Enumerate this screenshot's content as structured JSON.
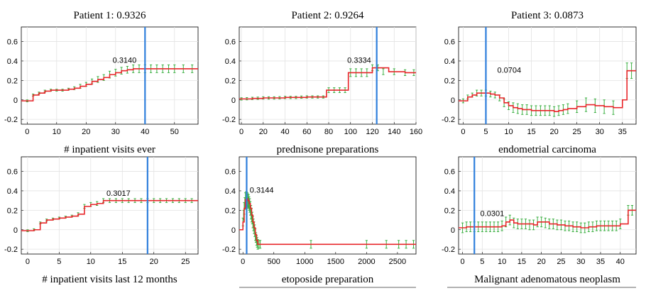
{
  "chart_data": [
    {
      "type": "line",
      "title": "Patient 1: 0.9326",
      "xlabel": "# inpatient visits ever",
      "xlim": [
        -2,
        58
      ],
      "ylim": [
        -0.25,
        0.75
      ],
      "xticks": [
        0,
        10,
        20,
        30,
        40,
        50
      ],
      "yticks": [
        -0.2,
        0,
        0.2,
        0.4,
        0.6
      ],
      "ytick_labels": [
        "-0.2",
        "0",
        "0.2",
        "0.4",
        "0.6"
      ],
      "grid": true,
      "marker": {
        "x": 40,
        "label": "0.3140",
        "label_x": 29,
        "label_y": 0.38
      },
      "colors": {
        "line": "#e8262a",
        "errorbar": "#3cb043",
        "marker": "#2f7fdc"
      },
      "step": {
        "x": [
          -2,
          0,
          2,
          4,
          6,
          8,
          10,
          12,
          14,
          16,
          18,
          20,
          22,
          24,
          26,
          28,
          30,
          32,
          34,
          36,
          38,
          40,
          42,
          44,
          46,
          48,
          50,
          52,
          54,
          56,
          58
        ],
        "y": [
          -0.01,
          -0.01,
          0.05,
          0.07,
          0.09,
          0.1,
          0.1,
          0.1,
          0.11,
          0.12,
          0.14,
          0.16,
          0.19,
          0.21,
          0.23,
          0.26,
          0.28,
          0.3,
          0.31,
          0.32,
          0.32,
          0.32,
          0.32,
          0.32,
          0.32,
          0.32,
          0.32,
          0.32,
          0.32,
          0.32,
          0.32
        ]
      },
      "errorbars": {
        "x": [
          0,
          2,
          4,
          6,
          8,
          10,
          12,
          14,
          16,
          18,
          20,
          22,
          24,
          26,
          28,
          30,
          32,
          34,
          36,
          38,
          40,
          42,
          44,
          46,
          48,
          50,
          53,
          56
        ],
        "y": [
          -0.01,
          0.05,
          0.07,
          0.09,
          0.1,
          0.1,
          0.1,
          0.11,
          0.12,
          0.14,
          0.16,
          0.19,
          0.21,
          0.23,
          0.26,
          0.28,
          0.3,
          0.31,
          0.32,
          0.32,
          0.32,
          0.32,
          0.32,
          0.32,
          0.32,
          0.32,
          0.32,
          0.32
        ],
        "err": [
          0.01,
          0.01,
          0.01,
          0.01,
          0.01,
          0.01,
          0.01,
          0.01,
          0.015,
          0.02,
          0.02,
          0.025,
          0.03,
          0.03,
          0.035,
          0.035,
          0.035,
          0.035,
          0.04,
          0.04,
          0.04,
          0.04,
          0.04,
          0.04,
          0.04,
          0.04,
          0.04,
          0.04
        ]
      }
    },
    {
      "type": "line",
      "title": "Patient 2: 0.9264",
      "xlabel": "prednisone preparations",
      "xlim": [
        -2,
        160
      ],
      "ylim": [
        -0.25,
        0.75
      ],
      "xticks": [
        0,
        20,
        40,
        60,
        80,
        100,
        120,
        140,
        160
      ],
      "yticks": [
        -0.2,
        0,
        0.2,
        0.4,
        0.6
      ],
      "ytick_labels": [
        "-0.2",
        "0",
        "0.2",
        "0.4",
        "0.6"
      ],
      "grid": true,
      "marker": {
        "x": 124,
        "label": "0.3334",
        "label_x": 97,
        "label_y": 0.38
      },
      "colors": {
        "line": "#e8262a",
        "errorbar": "#3cb043",
        "marker": "#2f7fdc"
      },
      "step": {
        "x": [
          -2,
          10,
          20,
          30,
          40,
          50,
          60,
          70,
          78,
          90,
          98,
          110,
          120,
          135,
          150,
          160
        ],
        "y": [
          0.01,
          0.015,
          0.02,
          0.02,
          0.025,
          0.025,
          0.03,
          0.03,
          0.1,
          0.1,
          0.28,
          0.28,
          0.33,
          0.29,
          0.28,
          0.28
        ]
      },
      "errorbars": {
        "x": [
          0,
          5,
          10,
          15,
          20,
          25,
          30,
          35,
          40,
          45,
          50,
          55,
          60,
          65,
          70,
          75,
          80,
          85,
          90,
          95,
          100,
          105,
          110,
          115,
          120,
          125,
          130,
          140,
          150,
          158
        ],
        "y": [
          0.01,
          0.012,
          0.015,
          0.017,
          0.02,
          0.02,
          0.02,
          0.022,
          0.025,
          0.025,
          0.025,
          0.028,
          0.03,
          0.03,
          0.03,
          0.03,
          0.1,
          0.1,
          0.1,
          0.1,
          0.28,
          0.28,
          0.28,
          0.28,
          0.33,
          0.33,
          0.29,
          0.29,
          0.28,
          0.28
        ],
        "err": [
          0.012,
          0.012,
          0.012,
          0.012,
          0.012,
          0.012,
          0.012,
          0.012,
          0.012,
          0.012,
          0.012,
          0.012,
          0.012,
          0.012,
          0.012,
          0.012,
          0.025,
          0.025,
          0.025,
          0.025,
          0.04,
          0.04,
          0.04,
          0.04,
          0.03,
          0.03,
          0.03,
          0.03,
          0.03,
          0.03
        ]
      }
    },
    {
      "type": "line",
      "title": "Patient 3: 0.0873",
      "xlabel": "endometrial carcinoma",
      "xlim": [
        -1,
        38
      ],
      "ylim": [
        -0.25,
        0.75
      ],
      "xticks": [
        0,
        5,
        10,
        15,
        20,
        25,
        30,
        35
      ],
      "yticks": [
        -0.2,
        0,
        0.2,
        0.4,
        0.6
      ],
      "ytick_labels": [
        "-0.2",
        "0",
        "0.2",
        "0.4",
        "0.6"
      ],
      "grid": true,
      "marker": {
        "x": 5,
        "label": "0.0704",
        "label_x": 7.5,
        "label_y": 0.28
      },
      "colors": {
        "line": "#e8262a",
        "errorbar": "#3cb043",
        "marker": "#2f7fdc"
      },
      "step": {
        "x": [
          -1,
          1,
          2,
          3,
          5,
          6,
          7,
          8,
          9,
          10,
          11,
          12,
          13,
          14,
          15,
          16,
          17,
          18,
          19,
          20,
          21,
          22,
          23,
          25,
          27,
          29,
          31,
          33,
          35,
          36,
          38
        ],
        "y": [
          -0.01,
          0.03,
          0.05,
          0.07,
          0.07,
          0.06,
          0.05,
          0.02,
          -0.03,
          -0.06,
          -0.08,
          -0.09,
          -0.1,
          -0.1,
          -0.11,
          -0.11,
          -0.11,
          -0.11,
          -0.11,
          -0.12,
          -0.11,
          -0.1,
          -0.09,
          -0.07,
          -0.05,
          -0.06,
          -0.07,
          -0.08,
          0.0,
          0.3,
          0.3
        ]
      },
      "errorbars": {
        "x": [
          0,
          1,
          2,
          3,
          4,
          5,
          6,
          7,
          8,
          9,
          10,
          11,
          12,
          13,
          14,
          15,
          16,
          17,
          18,
          19,
          20,
          21,
          22,
          23,
          25,
          27,
          29,
          31,
          33,
          36,
          37
        ],
        "y": [
          -0.01,
          0.03,
          0.05,
          0.07,
          0.07,
          0.07,
          0.06,
          0.05,
          0.02,
          -0.03,
          -0.06,
          -0.08,
          -0.09,
          -0.1,
          -0.1,
          -0.11,
          -0.11,
          -0.11,
          -0.11,
          -0.11,
          -0.12,
          -0.11,
          -0.1,
          -0.09,
          -0.07,
          -0.05,
          -0.06,
          -0.07,
          -0.08,
          0.3,
          0.3
        ],
        "err": [
          0.02,
          0.02,
          0.02,
          0.03,
          0.03,
          0.03,
          0.03,
          0.03,
          0.03,
          0.04,
          0.04,
          0.05,
          0.05,
          0.05,
          0.05,
          0.05,
          0.05,
          0.05,
          0.05,
          0.05,
          0.05,
          0.05,
          0.05,
          0.05,
          0.06,
          0.07,
          0.07,
          0.07,
          0.07,
          0.08,
          0.08
        ]
      }
    },
    {
      "type": "line",
      "title": "",
      "xlabel": "# inpatient visits last 12 months",
      "xlim": [
        -1,
        27
      ],
      "ylim": [
        -0.25,
        0.75
      ],
      "xticks": [
        0,
        5,
        10,
        15,
        20,
        25
      ],
      "yticks": [
        -0.2,
        0,
        0.2,
        0.4,
        0.6
      ],
      "ytick_labels": [
        "-0.2",
        "0",
        "0.2",
        "0.4",
        "0.6"
      ],
      "grid": true,
      "marker": {
        "x": 19,
        "label": "0.3017",
        "label_x": 12.5,
        "label_y": 0.35
      },
      "colors": {
        "line": "#e8262a",
        "errorbar": "#3cb043",
        "marker": "#2f7fdc"
      },
      "step": {
        "x": [
          -1,
          1,
          2,
          3,
          4,
          5,
          6,
          7,
          8,
          9,
          10,
          11,
          12,
          13,
          27
        ],
        "y": [
          -0.01,
          0.0,
          0.07,
          0.1,
          0.11,
          0.12,
          0.13,
          0.14,
          0.16,
          0.24,
          0.26,
          0.27,
          0.3,
          0.3,
          0.3
        ]
      },
      "errorbars": {
        "x": [
          0,
          1,
          2,
          3,
          4,
          5,
          6,
          7,
          8,
          9,
          10,
          11,
          12,
          13,
          14,
          15,
          16,
          17,
          18,
          19,
          20,
          21,
          22,
          23,
          24,
          25,
          26
        ],
        "y": [
          -0.01,
          0.0,
          0.07,
          0.1,
          0.11,
          0.12,
          0.13,
          0.14,
          0.16,
          0.24,
          0.26,
          0.27,
          0.3,
          0.3,
          0.3,
          0.3,
          0.3,
          0.3,
          0.3,
          0.3,
          0.3,
          0.3,
          0.3,
          0.3,
          0.3,
          0.3,
          0.3
        ],
        "err": [
          0.01,
          0.01,
          0.01,
          0.01,
          0.01,
          0.01,
          0.01,
          0.01,
          0.015,
          0.02,
          0.02,
          0.02,
          0.02,
          0.02,
          0.02,
          0.02,
          0.02,
          0.02,
          0.02,
          0.02,
          0.02,
          0.02,
          0.02,
          0.02,
          0.02,
          0.02,
          0.02
        ]
      }
    },
    {
      "type": "line",
      "title": "",
      "xlabel": "etoposide preparation",
      "xlim": [
        -60,
        2800
      ],
      "ylim": [
        -0.25,
        0.75
      ],
      "xticks": [
        0,
        500,
        1000,
        1500,
        2000,
        2500
      ],
      "yticks": [
        -0.2,
        0,
        0.2,
        0.4,
        0.6
      ],
      "ytick_labels": [
        "-0.2",
        "0",
        "0.2",
        "0.4",
        "0.6"
      ],
      "grid": false,
      "marker": {
        "x": 60,
        "label": "0.3144",
        "label_x": 110,
        "label_y": 0.38
      },
      "colors": {
        "line": "#e8262a",
        "errorbar": "#3cb043",
        "marker": "#2f7fdc"
      },
      "step": {
        "x": [
          -60,
          0,
          20,
          40,
          60,
          80,
          100,
          120,
          140,
          160,
          180,
          200,
          220,
          240,
          260,
          2800
        ],
        "y": [
          0.0,
          0.08,
          0.22,
          0.31,
          0.32,
          0.3,
          0.27,
          0.22,
          0.15,
          0.08,
          0.02,
          -0.05,
          -0.11,
          -0.15,
          -0.15,
          -0.15
        ]
      },
      "errorbars": {
        "x": [
          0,
          10,
          20,
          30,
          40,
          50,
          60,
          70,
          80,
          90,
          100,
          110,
          120,
          130,
          140,
          150,
          160,
          170,
          180,
          190,
          200,
          210,
          220,
          230,
          240,
          260,
          280,
          1100,
          2000,
          2320,
          2520,
          2640,
          2760
        ],
        "y": [
          0.08,
          0.15,
          0.22,
          0.27,
          0.31,
          0.32,
          0.32,
          0.31,
          0.3,
          0.29,
          0.27,
          0.25,
          0.22,
          0.18,
          0.15,
          0.12,
          0.08,
          0.05,
          0.02,
          -0.01,
          -0.05,
          -0.08,
          -0.11,
          -0.13,
          -0.15,
          -0.15,
          -0.15,
          -0.15,
          -0.15,
          -0.15,
          -0.15,
          -0.15,
          -0.15
        ],
        "err": [
          0.04,
          0.05,
          0.06,
          0.06,
          0.07,
          0.07,
          0.07,
          0.07,
          0.07,
          0.07,
          0.07,
          0.07,
          0.07,
          0.07,
          0.07,
          0.06,
          0.06,
          0.06,
          0.06,
          0.06,
          0.06,
          0.05,
          0.05,
          0.05,
          0.05,
          0.04,
          0.04,
          0.04,
          0.04,
          0.04,
          0.04,
          0.04,
          0.04
        ]
      }
    },
    {
      "type": "line",
      "title": "",
      "xlabel": "Malignant adenomatous neoplasm",
      "xlim": [
        -1,
        44
      ],
      "ylim": [
        -0.25,
        0.75
      ],
      "xticks": [
        0,
        5,
        10,
        15,
        20,
        25,
        30,
        35,
        40
      ],
      "yticks": [
        -0.2,
        0,
        0.2,
        0.4,
        0.6
      ],
      "ytick_labels": [
        "-0.2",
        "0",
        "0.2",
        "0.4",
        "0.6"
      ],
      "grid": true,
      "marker": {
        "x": 3,
        "label": "0.0301",
        "label_x": 4.5,
        "label_y": 0.14
      },
      "colors": {
        "line": "#e8262a",
        "errorbar": "#3cb043",
        "marker": "#2f7fdc"
      },
      "step": {
        "x": [
          -1,
          1,
          2,
          4,
          6,
          8,
          10,
          11,
          12,
          13,
          14,
          16,
          18,
          19,
          20,
          22,
          24,
          26,
          28,
          30,
          32,
          34,
          36,
          38,
          40,
          42,
          44
        ],
        "y": [
          0.02,
          0.03,
          0.03,
          0.03,
          0.03,
          0.03,
          0.04,
          0.08,
          0.1,
          0.07,
          0.06,
          0.06,
          0.05,
          0.08,
          0.08,
          0.06,
          0.05,
          0.04,
          0.03,
          0.02,
          0.03,
          0.04,
          0.04,
          0.04,
          0.06,
          0.2,
          0.2
        ]
      },
      "errorbars": {
        "x": [
          0,
          1,
          2,
          3,
          4,
          5,
          6,
          7,
          8,
          9,
          10,
          11,
          12,
          13,
          14,
          15,
          16,
          17,
          18,
          19,
          20,
          21,
          22,
          23,
          24,
          25,
          26,
          27,
          28,
          29,
          30,
          31,
          32,
          33,
          34,
          35,
          36,
          37,
          38,
          39,
          40,
          42,
          43
        ],
        "y": [
          0.02,
          0.03,
          0.03,
          0.03,
          0.03,
          0.03,
          0.03,
          0.03,
          0.03,
          0.03,
          0.04,
          0.08,
          0.1,
          0.07,
          0.06,
          0.06,
          0.06,
          0.05,
          0.05,
          0.08,
          0.08,
          0.07,
          0.06,
          0.06,
          0.05,
          0.05,
          0.04,
          0.04,
          0.03,
          0.03,
          0.02,
          0.02,
          0.03,
          0.03,
          0.04,
          0.04,
          0.04,
          0.04,
          0.04,
          0.04,
          0.06,
          0.2,
          0.2
        ]
      },
      "err": [],
      "errorbar_err": 0.05
    }
  ]
}
